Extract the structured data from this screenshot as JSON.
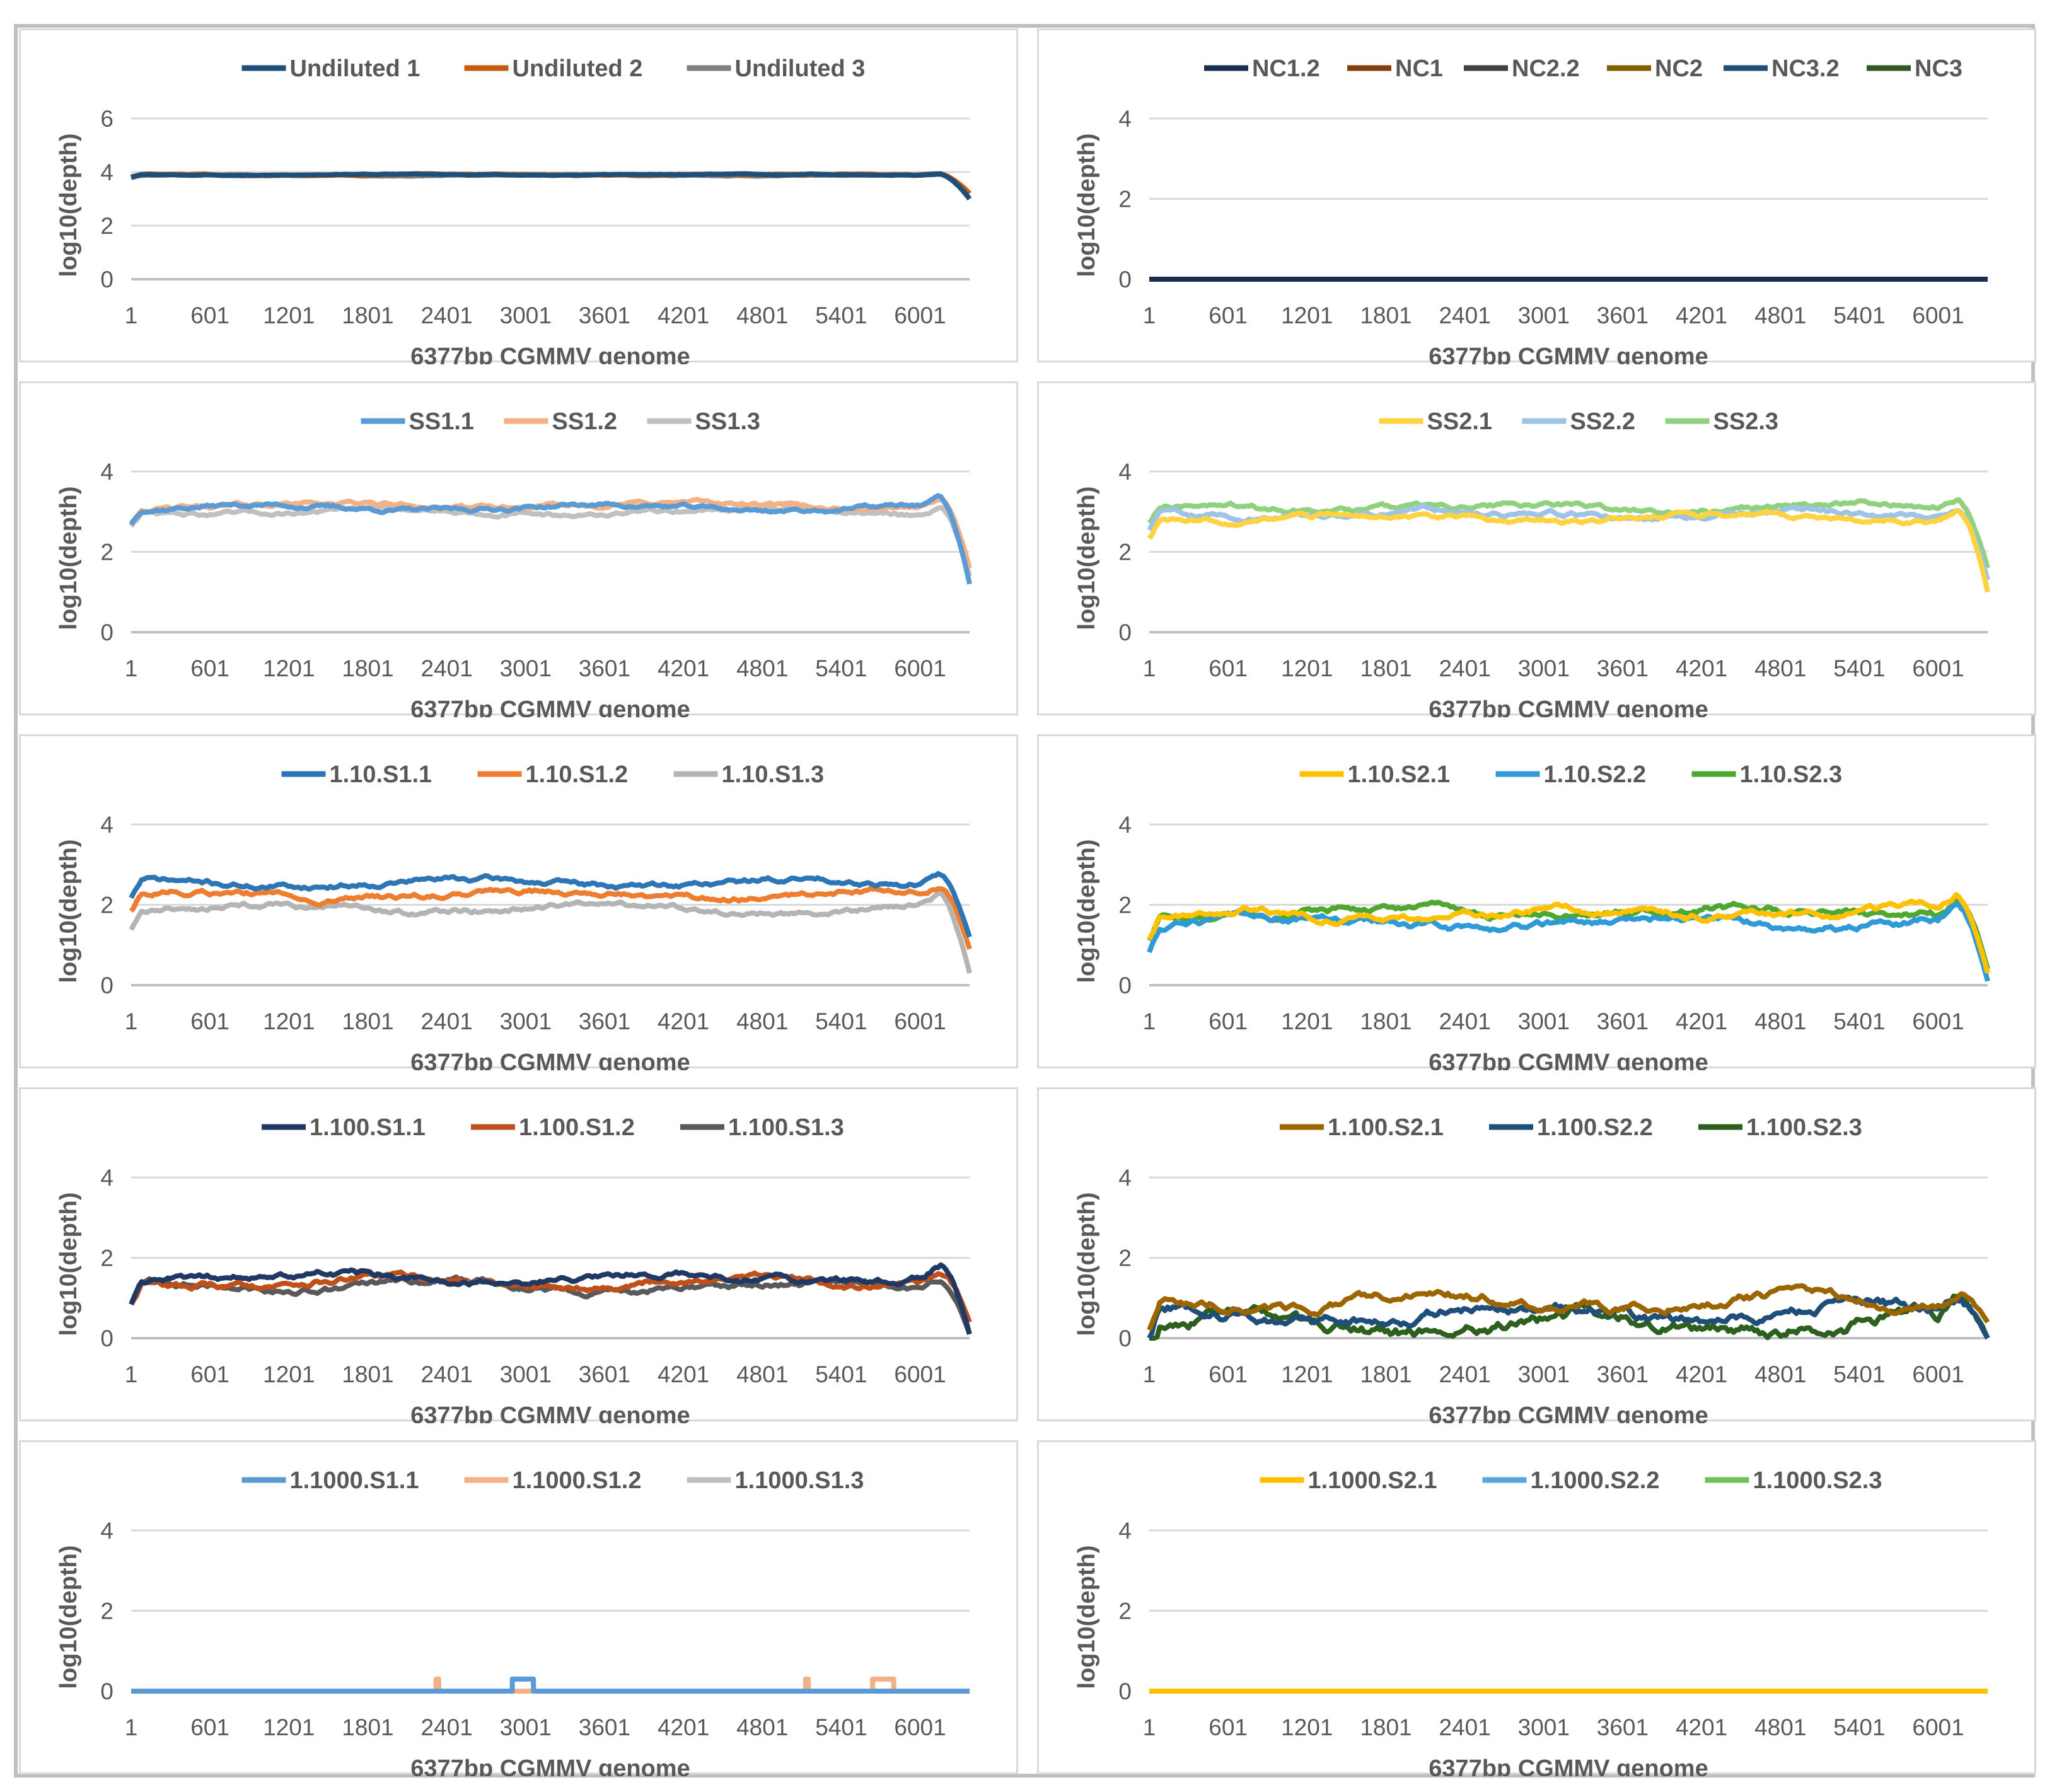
{
  "chart_data": [
    {
      "type": "line",
      "xlabel": "6377bp CGMMV genome",
      "ylabel": "log10(depth)",
      "x_ticks": [
        "1",
        "601",
        "1201",
        "1801",
        "2401",
        "3001",
        "3601",
        "4201",
        "4801",
        "5401",
        "6001"
      ],
      "y_ticks": [
        "0",
        "2",
        "4",
        "6"
      ],
      "ylim": [
        0,
        6
      ],
      "xlim": [
        1,
        6377
      ],
      "grid": true,
      "legend": "top",
      "series": [
        {
          "name": "Undiluted 1",
          "color": "#1f4e79",
          "level": 3.9,
          "end_drop": 3.0,
          "noise": 0.03
        },
        {
          "name": "Undiluted 2",
          "color": "#c55a11",
          "level": 3.9,
          "end_drop": 3.2,
          "noise": 0.03
        },
        {
          "name": "Undiluted 3",
          "color": "#7f7f7f",
          "level": 3.88,
          "end_drop": 3.0,
          "noise": 0.03
        }
      ]
    },
    {
      "type": "line",
      "xlabel": "6377bp CGMMV genome",
      "ylabel": "log10(depth)",
      "x_ticks": [
        "1",
        "601",
        "1201",
        "1801",
        "2401",
        "3001",
        "3601",
        "4201",
        "4801",
        "5401",
        "6001"
      ],
      "y_ticks": [
        "0",
        "2",
        "4"
      ],
      "ylim": [
        0,
        4
      ],
      "xlim": [
        1,
        6377
      ],
      "grid": true,
      "legend": "top",
      "series": [
        {
          "name": "NC1.2",
          "color": "#1a2e4f",
          "level": 0,
          "end_drop": 0,
          "noise": 0
        },
        {
          "name": "NC1",
          "color": "#843c0c",
          "level": 0,
          "end_drop": 0,
          "noise": 0
        },
        {
          "name": "NC2.2",
          "color": "#404040",
          "level": 0,
          "end_drop": 0,
          "noise": 0
        },
        {
          "name": "NC2",
          "color": "#7f6000",
          "level": 0,
          "end_drop": 0,
          "noise": 0
        },
        {
          "name": "NC3.2",
          "color": "#1f4e79",
          "level": 0,
          "end_drop": 0,
          "noise": 0
        },
        {
          "name": "NC3",
          "color": "#375623",
          "level": 0,
          "end_drop": 0,
          "noise": 0
        }
      ]
    },
    {
      "type": "line",
      "xlabel": "6377bp CGMMV genome",
      "ylabel": "log10(depth)",
      "x_ticks": [
        "1",
        "601",
        "1201",
        "1801",
        "2401",
        "3001",
        "3601",
        "4201",
        "4801",
        "5401",
        "6001"
      ],
      "y_ticks": [
        "0",
        "2",
        "4"
      ],
      "ylim": [
        0,
        4
      ],
      "xlim": [
        1,
        6377
      ],
      "grid": true,
      "legend": "top",
      "series": [
        {
          "name": "SS1.1",
          "color": "#5b9bd5",
          "level": 3.1,
          "end_drop": 1.2,
          "noise": 0.12
        },
        {
          "name": "SS1.2",
          "color": "#f4b183",
          "level": 3.15,
          "end_drop": 1.6,
          "noise": 0.12
        },
        {
          "name": "SS1.3",
          "color": "#c0c0c0",
          "level": 3.0,
          "end_drop": 1.4,
          "noise": 0.12
        }
      ]
    },
    {
      "type": "line",
      "xlabel": "6377bp CGMMV genome",
      "ylabel": "log10(depth)",
      "x_ticks": [
        "1",
        "601",
        "1201",
        "1801",
        "2401",
        "3001",
        "3601",
        "4201",
        "4801",
        "5401",
        "6001"
      ],
      "y_ticks": [
        "0",
        "2",
        "4"
      ],
      "ylim": [
        0,
        4
      ],
      "xlim": [
        1,
        6377
      ],
      "grid": true,
      "legend": "top",
      "series": [
        {
          "name": "SS2.1",
          "color": "#ffd23f",
          "level": 2.85,
          "end_drop": 1.0,
          "noise": 0.15
        },
        {
          "name": "SS2.2",
          "color": "#9dc3e6",
          "level": 2.95,
          "end_drop": 1.3,
          "noise": 0.15
        },
        {
          "name": "SS2.3",
          "color": "#8fd17e",
          "level": 3.1,
          "end_drop": 1.6,
          "noise": 0.15
        }
      ]
    },
    {
      "type": "line",
      "xlabel": "6377bp CGMMV genome",
      "ylabel": "log10(depth)",
      "x_ticks": [
        "1",
        "601",
        "1201",
        "1801",
        "2401",
        "3001",
        "3601",
        "4201",
        "4801",
        "5401",
        "6001"
      ],
      "y_ticks": [
        "0",
        "2",
        "4"
      ],
      "ylim": [
        0,
        4
      ],
      "xlim": [
        1,
        6377
      ],
      "grid": true,
      "legend": "top",
      "series": [
        {
          "name": "1.10.S1.1",
          "color": "#2e75b6",
          "level": 2.55,
          "end_drop": 1.2,
          "noise": 0.15
        },
        {
          "name": "1.10.S1.2",
          "color": "#ed7d31",
          "level": 2.25,
          "end_drop": 0.9,
          "noise": 0.15
        },
        {
          "name": "1.10.S1.3",
          "color": "#b4b4b4",
          "level": 1.9,
          "end_drop": 0.3,
          "noise": 0.15
        }
      ]
    },
    {
      "type": "line",
      "xlabel": "6377bp CGMMV genome",
      "ylabel": "log10(depth)",
      "x_ticks": [
        "1",
        "601",
        "1201",
        "1801",
        "2401",
        "3001",
        "3601",
        "4201",
        "4801",
        "5401",
        "6001"
      ],
      "y_ticks": [
        "0",
        "2",
        "4"
      ],
      "ylim": [
        0,
        4
      ],
      "xlim": [
        1,
        6377
      ],
      "grid": true,
      "legend": "top",
      "series": [
        {
          "name": "1.10.S2.1",
          "color": "#ffc000",
          "level": 1.75,
          "end_drop": 0.3,
          "noise": 0.2
        },
        {
          "name": "1.10.S2.2",
          "color": "#2e9ad8",
          "level": 1.55,
          "end_drop": 0.1,
          "noise": 0.2
        },
        {
          "name": "1.10.S2.3",
          "color": "#4ea72e",
          "level": 1.8,
          "end_drop": 0.4,
          "noise": 0.2
        }
      ]
    },
    {
      "type": "line",
      "xlabel": "6377bp CGMMV genome",
      "ylabel": "log10(depth)",
      "x_ticks": [
        "1",
        "601",
        "1201",
        "1801",
        "2401",
        "3001",
        "3601",
        "4201",
        "4801",
        "5401",
        "6001"
      ],
      "y_ticks": [
        "0",
        "2",
        "4"
      ],
      "ylim": [
        0,
        4
      ],
      "xlim": [
        1,
        6377
      ],
      "grid": true,
      "legend": "top",
      "series": [
        {
          "name": "1.100.S1.1",
          "color": "#1f3864",
          "level": 1.5,
          "end_drop": 0.1,
          "noise": 0.18
        },
        {
          "name": "1.100.S1.2",
          "color": "#c0501a",
          "level": 1.4,
          "end_drop": 0.4,
          "noise": 0.18
        },
        {
          "name": "1.100.S1.3",
          "color": "#595959",
          "level": 1.3,
          "end_drop": 0.1,
          "noise": 0.18
        }
      ]
    },
    {
      "type": "line",
      "xlabel": "6377bp CGMMV genome",
      "ylabel": "log10(depth)",
      "x_ticks": [
        "1",
        "601",
        "1201",
        "1801",
        "2401",
        "3001",
        "3601",
        "4201",
        "4801",
        "5401",
        "6001"
      ],
      "y_ticks": [
        "0",
        "2",
        "4"
      ],
      "ylim": [
        0,
        4
      ],
      "xlim": [
        1,
        6377
      ],
      "grid": true,
      "legend": "top",
      "series": [
        {
          "name": "1.100.S2.1",
          "color": "#9c6500",
          "level": 0.9,
          "end_drop": 0.4,
          "noise": 0.25
        },
        {
          "name": "1.100.S2.2",
          "color": "#1f4e79",
          "level": 0.6,
          "end_drop": 0.0,
          "noise": 0.3
        },
        {
          "name": "1.100.S2.3",
          "color": "#2d5f1e",
          "level": 0.35,
          "end_drop": 0.0,
          "noise": 0.35
        }
      ]
    },
    {
      "type": "line",
      "xlabel": "6377bp CGMMV genome",
      "ylabel": "log10(depth)",
      "x_ticks": [
        "1",
        "601",
        "1201",
        "1801",
        "2401",
        "3001",
        "3601",
        "4201",
        "4801",
        "5401",
        "6001"
      ],
      "y_ticks": [
        "0",
        "2",
        "4"
      ],
      "ylim": [
        0,
        4
      ],
      "xlim": [
        1,
        6377
      ],
      "grid": true,
      "legend": "top",
      "series": [
        {
          "name": "1.1000.S1.1",
          "color": "#5b9bd5",
          "level": 0,
          "end_drop": 0,
          "noise": 0,
          "bumps": [
            [
              2900,
              3060,
              0.3
            ]
          ]
        },
        {
          "name": "1.1000.S1.2",
          "color": "#f4b183",
          "level": 0,
          "end_drop": 0,
          "noise": 0,
          "bumps": [
            [
              2320,
              2340,
              0.3
            ],
            [
              5130,
              5150,
              0.3
            ],
            [
              5640,
              5800,
              0.3
            ]
          ]
        },
        {
          "name": "1.1000.S1.3",
          "color": "#c0c0c0",
          "level": 0,
          "end_drop": 0,
          "noise": 0
        }
      ]
    },
    {
      "type": "line",
      "xlabel": "6377bp CGMMV genome",
      "ylabel": "log10(depth)",
      "x_ticks": [
        "1",
        "601",
        "1201",
        "1801",
        "2401",
        "3001",
        "3601",
        "4201",
        "4801",
        "5401",
        "6001"
      ],
      "y_ticks": [
        "0",
        "2",
        "4"
      ],
      "ylim": [
        0,
        4
      ],
      "xlim": [
        1,
        6377
      ],
      "grid": true,
      "legend": "top",
      "series": [
        {
          "name": "1.1000.S2.1",
          "color": "#ffc000",
          "level": 0,
          "end_drop": 0,
          "noise": 0
        },
        {
          "name": "1.1000.S2.2",
          "color": "#5ba4de",
          "level": 0,
          "end_drop": 0,
          "noise": 0
        },
        {
          "name": "1.1000.S2.3",
          "color": "#70c05a",
          "level": 0,
          "end_drop": 0,
          "noise": 0
        }
      ]
    }
  ]
}
